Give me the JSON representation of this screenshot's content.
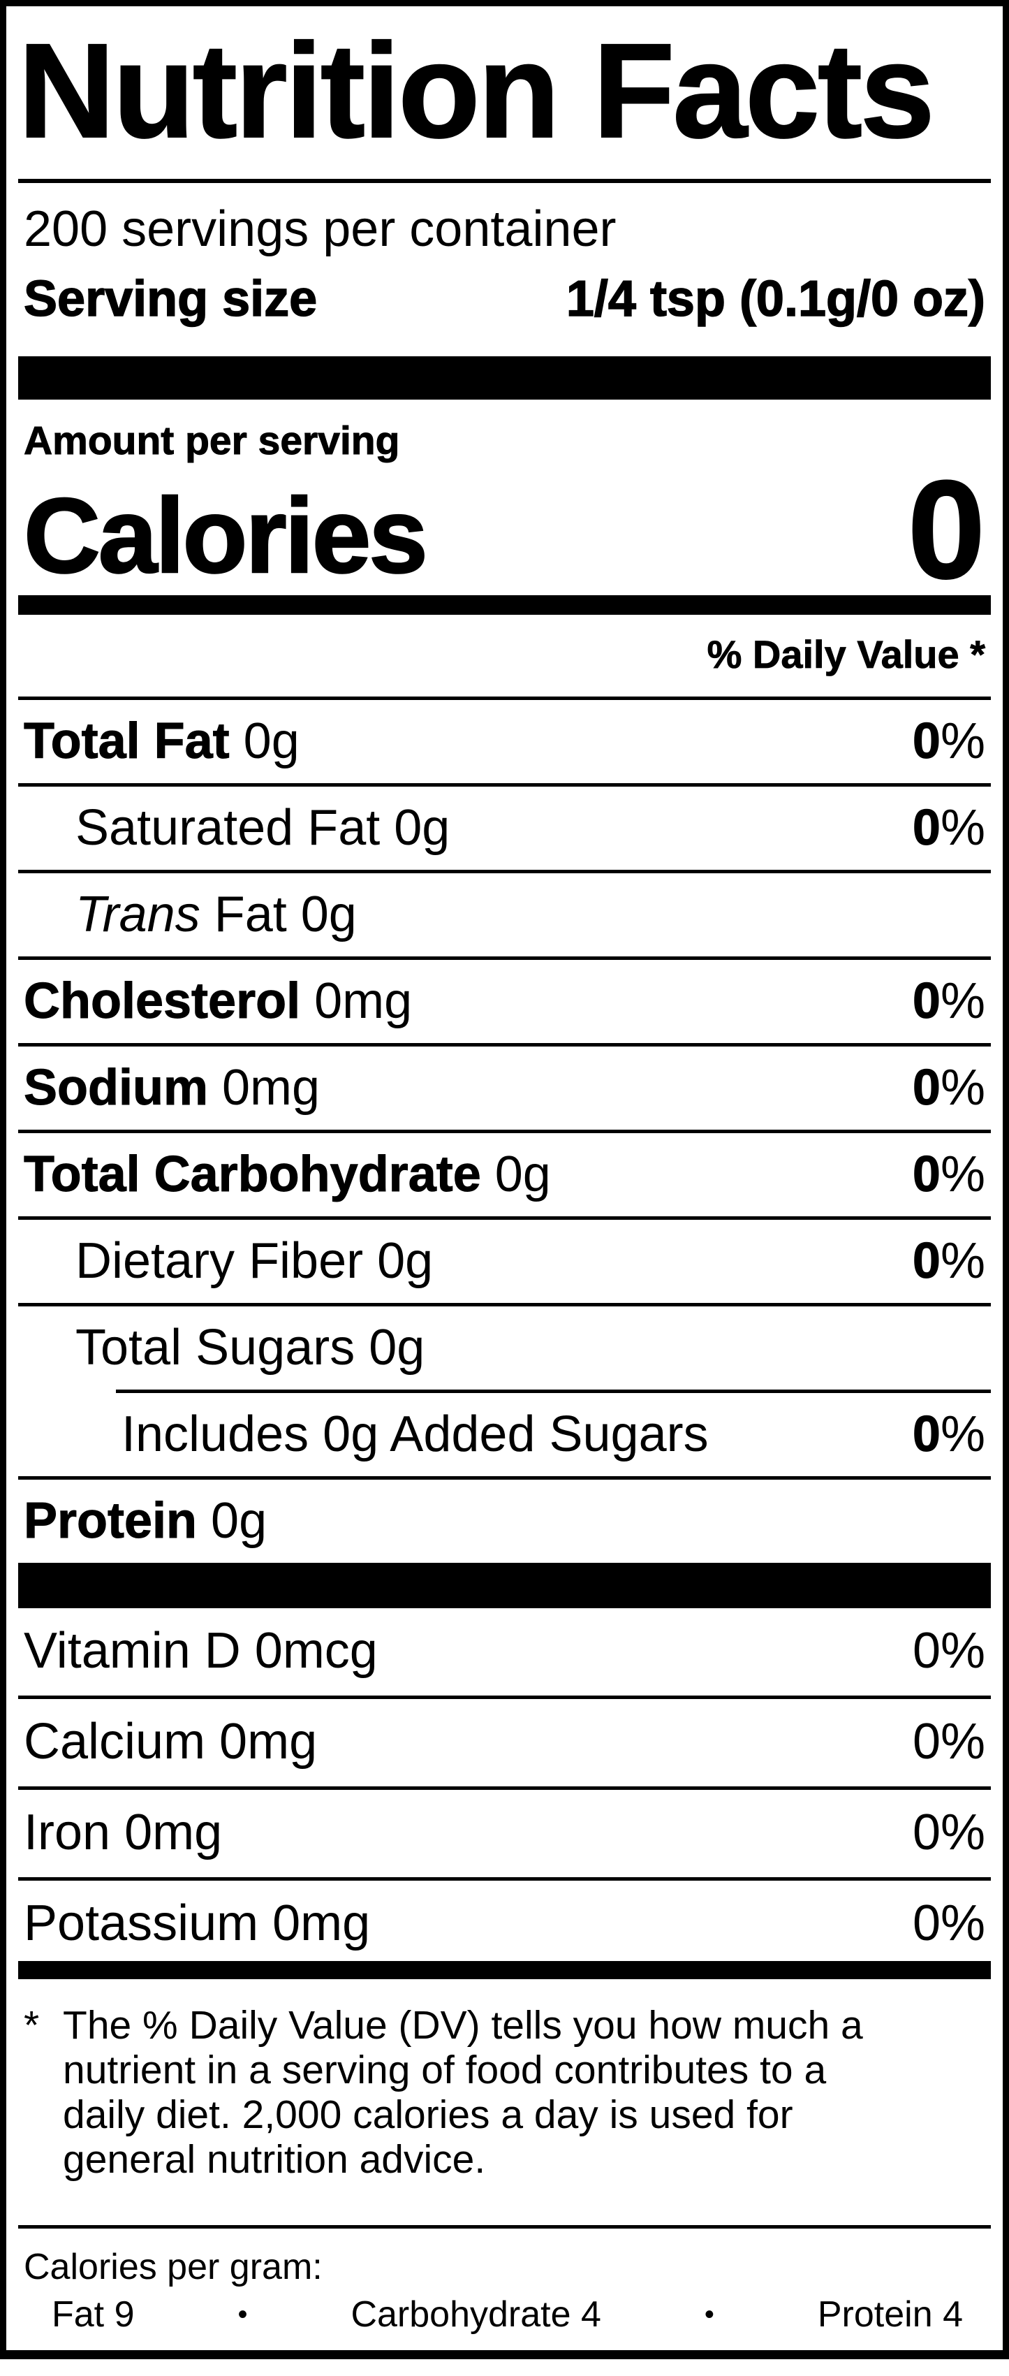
{
  "label": {
    "title": "Nutrition Facts",
    "servings_per_container": "200 servings per container",
    "serving_size": {
      "label": "Serving size",
      "value": "1/4 tsp (0.1g/0 oz)"
    },
    "amount_per_serving": "Amount per serving",
    "calories": {
      "label": "Calories",
      "value": "0"
    },
    "daily_value_header": "% Daily Value *",
    "nutrient_rows": [
      {
        "name_bold": "Total Fat",
        "name_italic": "",
        "name_regular": " 0g",
        "dv_num": "0",
        "dv_pct": "%",
        "dv_bold": true,
        "indent": 0,
        "divider": "full",
        "top_rule": "none"
      },
      {
        "name_bold": "",
        "name_italic": "",
        "name_regular": "Saturated Fat 0g",
        "dv_num": "0",
        "dv_pct": "%",
        "dv_bold": true,
        "indent": 1,
        "divider": "full",
        "top_rule": "none"
      },
      {
        "name_bold": "",
        "name_italic": "Trans",
        "name_regular": " Fat 0g",
        "dv_num": "",
        "dv_pct": "",
        "dv_bold": false,
        "indent": 1,
        "divider": "full",
        "top_rule": "none"
      },
      {
        "name_bold": "Cholesterol",
        "name_italic": "",
        "name_regular": " 0mg",
        "dv_num": "0",
        "dv_pct": "%",
        "dv_bold": true,
        "indent": 0,
        "divider": "full",
        "top_rule": "none"
      },
      {
        "name_bold": "Sodium",
        "name_italic": "",
        "name_regular": " 0mg",
        "dv_num": "0",
        "dv_pct": "%",
        "dv_bold": true,
        "indent": 0,
        "divider": "full",
        "top_rule": "none"
      },
      {
        "name_bold": "Total Carbohydrate",
        "name_italic": "",
        "name_regular": " 0g",
        "dv_num": "0",
        "dv_pct": "%",
        "dv_bold": true,
        "indent": 0,
        "divider": "full",
        "top_rule": "none"
      },
      {
        "name_bold": "",
        "name_italic": "",
        "name_regular": "Dietary Fiber 0g",
        "dv_num": "0",
        "dv_pct": "%",
        "dv_bold": true,
        "indent": 1,
        "divider": "full",
        "top_rule": "none"
      },
      {
        "name_bold": "",
        "name_italic": "",
        "name_regular": "Total Sugars 0g",
        "dv_num": "",
        "dv_pct": "",
        "dv_bold": false,
        "indent": 1,
        "divider": "none",
        "top_rule": "none"
      },
      {
        "name_bold": "",
        "name_italic": "",
        "name_regular": "Includes 0g Added Sugars",
        "dv_num": "0",
        "dv_pct": "%",
        "dv_bold": true,
        "indent": 2,
        "divider": "full",
        "top_rule": "partial"
      },
      {
        "name_bold": "Protein",
        "name_italic": "",
        "name_regular": " 0g",
        "dv_num": "",
        "dv_pct": "",
        "dv_bold": false,
        "indent": 0,
        "divider": "none",
        "top_rule": "none"
      }
    ],
    "vitamin_rows": [
      {
        "name": "Vitamin D 0mcg",
        "dv": "0%",
        "divider": "full"
      },
      {
        "name": "Calcium 0mg",
        "dv": "0%",
        "divider": "full"
      },
      {
        "name": "Iron 0mg",
        "dv": "0%",
        "divider": "full"
      },
      {
        "name": "Potassium 0mg",
        "dv": "0%",
        "divider": "none"
      }
    ],
    "footnote": {
      "asterisk": "*",
      "lines": [
        "The % Daily Value (DV) tells you how much a",
        "nutrient in a serving of food contributes to a",
        "daily diet. 2,000 calories a day is used for",
        "general nutrition advice."
      ]
    },
    "calories_per_gram": {
      "heading": "Calories per gram:",
      "separator": "•",
      "items": [
        "Fat 9",
        "Carbohydrate 4",
        "Protein 4"
      ]
    }
  }
}
